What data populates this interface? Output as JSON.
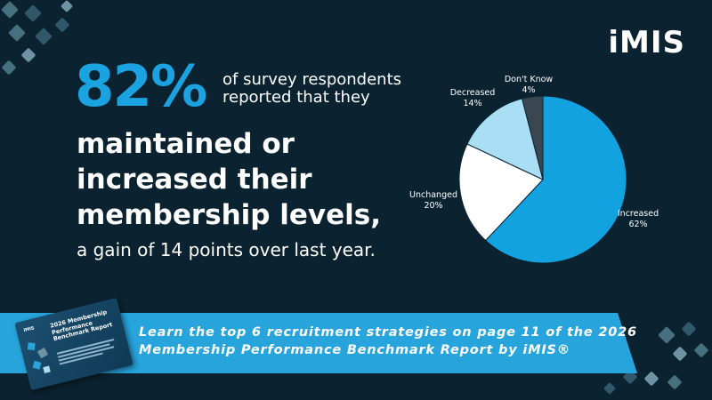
{
  "brand": {
    "logo_text": "iMIS"
  },
  "stat": {
    "number": "82%",
    "lead": "of survey respondents reported that they",
    "headline": "maintained or increased their membership levels,",
    "subline": "a gain of 14 points over last year."
  },
  "banner": {
    "text": "Learn the top 6 recruitment strategies on page 11 of the 2026 Membership Performance Benchmark Report by iMIS®",
    "book_title": "2026 Membership Performance Benchmark Report",
    "book_brand": "iMIS"
  },
  "colors": {
    "background": "#0b2230",
    "accent_blue": "#1aa3e0",
    "banner_blue": "#27a4dc",
    "slice_increased": "#13a2e0",
    "slice_unchanged": "#ffffff",
    "slice_decreased": "#a9def5",
    "slice_dont_know": "#3a4751"
  },
  "chart_data": {
    "type": "pie",
    "title": "",
    "slices": [
      {
        "label": "Increased",
        "value": 62,
        "value_label": "62%",
        "color": "#13a2e0"
      },
      {
        "label": "Unchanged",
        "value": 20,
        "value_label": "20%",
        "color": "#ffffff"
      },
      {
        "label": "Decreased",
        "value": 14,
        "value_label": "14%",
        "color": "#a9def5"
      },
      {
        "label": "Don't Know",
        "value": 4,
        "value_label": "4%",
        "color": "#3a4751"
      }
    ],
    "start": "12 o'clock",
    "direction": "clockwise",
    "legend": "none"
  }
}
